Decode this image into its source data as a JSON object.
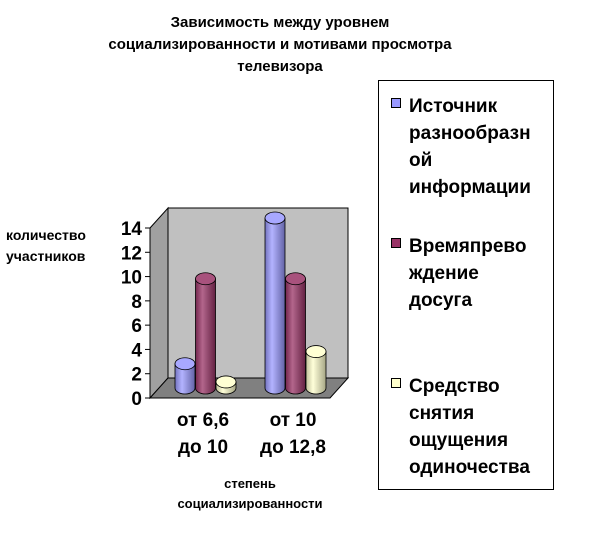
{
  "chart_data": {
    "type": "bar",
    "title": "Зависимость между уровнем\nсоциализированности и мотивами просмотра\nтелевизора",
    "ylabel": "количество\nучастников",
    "xlabel": "степень\nсоциализированности",
    "categories": [
      [
        "от 6,6",
        "до 10"
      ],
      [
        "от 10",
        "до 12,8"
      ]
    ],
    "series": [
      {
        "name": "Источник\nразнообразн\nой\nинформации",
        "values": [
          2,
          14
        ],
        "color": "#9999FF"
      },
      {
        "name": "Времяпрево\nждение\nдосуга",
        "values": [
          9,
          9
        ],
        "color": "#993366"
      },
      {
        "name": "Средство\nснятия\nощущения\nодиночества",
        "values": [
          0.5,
          3
        ],
        "color": "#FFFFCC"
      }
    ],
    "ylim": [
      0,
      14
    ],
    "yticks": [
      "0",
      "2",
      "4",
      "6",
      "8",
      "10",
      "12",
      "14"
    ],
    "grid": false,
    "legend_position": "right",
    "style": "3d-cylinder"
  }
}
